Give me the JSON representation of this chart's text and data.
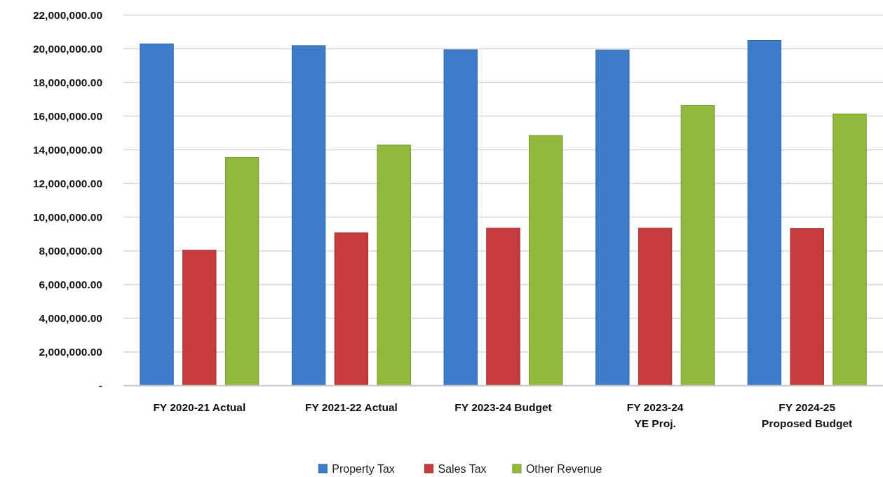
{
  "chart_data": {
    "type": "bar",
    "categories": [
      "FY 2020-21 Actual",
      "FY 2021-22 Actual",
      "FY 2023-24 Budget",
      "FY 2023-24\nYE Proj.",
      "FY 2024-25\nProposed Budget"
    ],
    "series": [
      {
        "name": "Property Tax",
        "color": "#3d7cc9",
        "values": [
          20280000,
          20190000,
          19940000,
          19930000,
          20500000
        ]
      },
      {
        "name": "Sales Tax",
        "color": "#c63b3b",
        "values": [
          8040000,
          9070000,
          9350000,
          9350000,
          9330000
        ]
      },
      {
        "name": "Other Revenue",
        "color": "#93b93c",
        "values": [
          13550000,
          14280000,
          14850000,
          16630000,
          16130000
        ]
      }
    ],
    "ylim": [
      0,
      22000000
    ],
    "yticks": [
      {
        "value": 0,
        "label": "-"
      },
      {
        "value": 2000000,
        "label": "2,000,000.00"
      },
      {
        "value": 4000000,
        "label": "4,000,000.00"
      },
      {
        "value": 6000000,
        "label": "6,000,000.00"
      },
      {
        "value": 8000000,
        "label": "8,000,000.00"
      },
      {
        "value": 10000000,
        "label": "10,000,000.00"
      },
      {
        "value": 12000000,
        "label": "12,000,000.00"
      },
      {
        "value": 14000000,
        "label": "14,000,000.00"
      },
      {
        "value": 16000000,
        "label": "16,000,000.00"
      },
      {
        "value": 18000000,
        "label": "18,000,000.00"
      },
      {
        "value": 20000000,
        "label": "20,000,000.00"
      },
      {
        "value": 22000000,
        "label": "22,000,000.00"
      }
    ],
    "grid": "y",
    "legend": "bottom"
  }
}
